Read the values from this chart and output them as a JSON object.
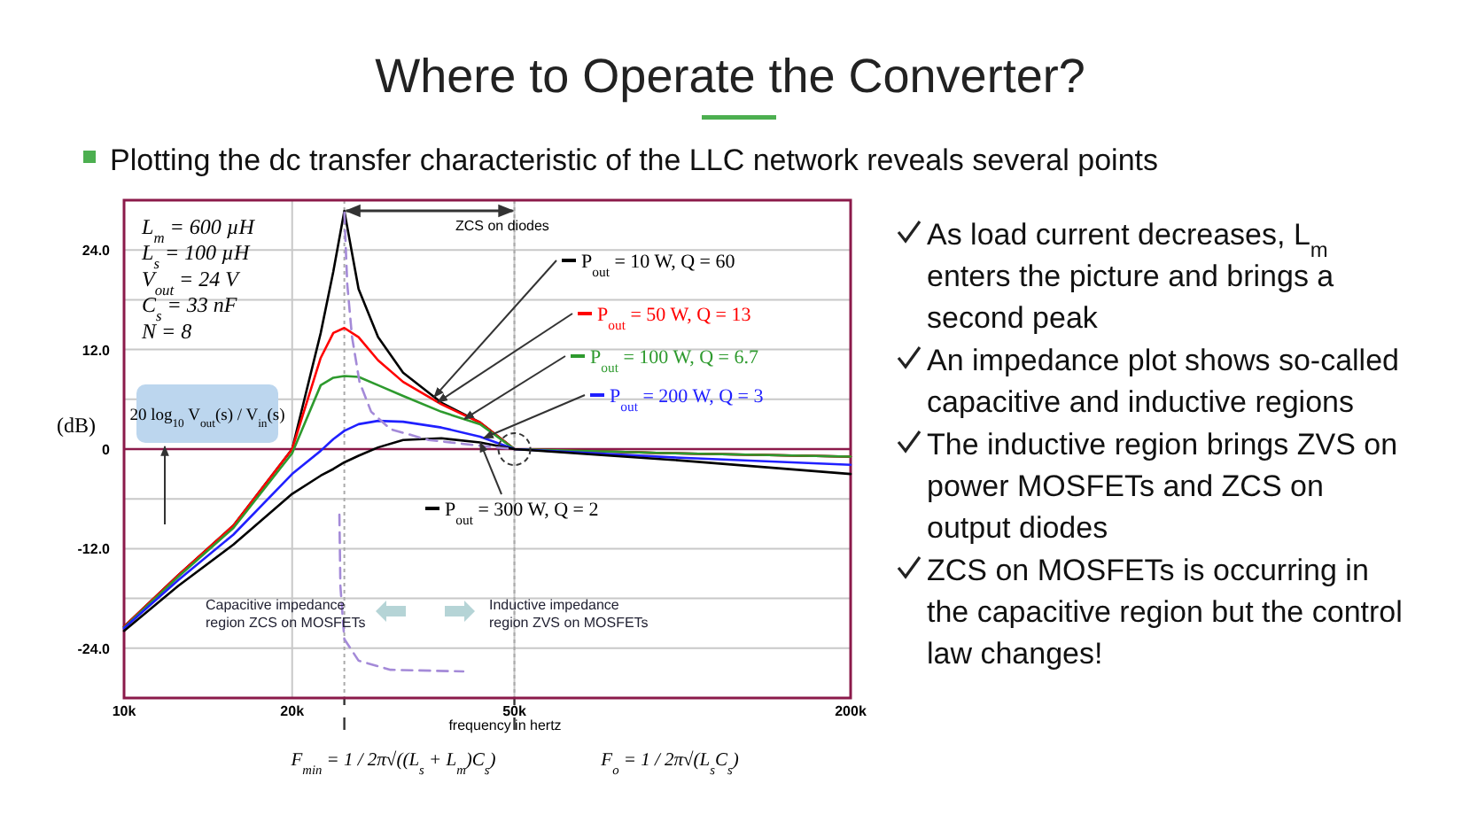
{
  "chart_data": {
    "type": "line",
    "title": "Where to Operate the Converter?",
    "subtitle": "Plotting the dc transfer characteristic of the LLC network reveals several points",
    "xlabel": "frequency in hertz",
    "ylabel": "(dB)",
    "log": "x",
    "xlim": [
      10000,
      200000
    ],
    "xticks": [
      {
        "value": 10000,
        "label": "10k"
      },
      {
        "value": 20000,
        "label": "20k"
      },
      {
        "value": 50000,
        "label": "50k"
      },
      {
        "value": 200000,
        "label": "200k"
      }
    ],
    "ylim": [
      -30,
      30
    ],
    "yticks": [
      {
        "value": -24,
        "label": "-24.0"
      },
      {
        "value": -18,
        "label": null
      },
      {
        "value": -12,
        "label": "-12.0"
      },
      {
        "value": -6,
        "label": null
      },
      0,
      {
        "value": 6,
        "label": null
      },
      {
        "value": 12,
        "label": "12.0"
      },
      {
        "value": 18,
        "label": null
      },
      {
        "value": 24,
        "label": "24.0"
      }
    ],
    "grid": true,
    "legend": "right",
    "x": [
      10000,
      12500,
      15700,
      20000,
      22500,
      23700,
      24800,
      26300,
      28500,
      31600,
      37000,
      43400,
      50000,
      96000,
      200000
    ],
    "series": [
      {
        "name": "P$_{out}$ = 10 W, Q = 60",
        "color": "#000000",
        "values": [
          -21.4,
          -15.2,
          -9.2,
          0,
          14,
          21.4,
          28.7,
          19.3,
          13.5,
          9.2,
          5.6,
          3.2,
          0,
          -0.5,
          -0.9
        ]
      },
      {
        "name": "P$_{out}$ = 50 W, Q = 13",
        "color": "#ff0000",
        "values": [
          -21.4,
          -15.2,
          -9.2,
          0,
          11,
          14,
          14.6,
          13.5,
          10.7,
          8.1,
          5.4,
          3.2,
          0,
          -0.5,
          -0.9
        ]
      },
      {
        "name": "P$_{out}$ = 100 W, Q = 6.7",
        "color": "#2e9a2e",
        "values": [
          -21.5,
          -15.4,
          -9.5,
          -0.5,
          7.7,
          8.6,
          8.8,
          8.7,
          7.7,
          6.4,
          4.5,
          3,
          0,
          -0.5,
          -0.9
        ]
      },
      {
        "name": "P$_{out}$ = 200 W, Q = 3",
        "color": "#2020ff",
        "values": [
          -21.6,
          -15.8,
          -10.3,
          -3,
          -0.2,
          1.2,
          2.2,
          3,
          3.4,
          3.3,
          2.6,
          1.5,
          0,
          -1,
          -1.9
        ]
      },
      {
        "name": "P$_{out}$ = 300 W, Q = 2",
        "color": "#000000",
        "values": [
          -21.9,
          -16.5,
          -11.5,
          -5.4,
          -3.2,
          -2.4,
          -1.6,
          -0.8,
          0.2,
          1.1,
          1.3,
          0.8,
          0,
          -1.3,
          -3
        ]
      },
      {
        "color": "#a48ad8",
        "line_style": "dashed",
        "x": [
          24800,
          25100,
          25600,
          26400,
          27700,
          30000,
          35100,
          43400,
          50000
        ],
        "values": [
          28.5,
          19.9,
          13.5,
          8.1,
          4.5,
          2.4,
          1.1,
          0.4,
          0
        ]
      },
      {
        "color": "#a48ad8",
        "line_style": "dashed",
        "x": [
          24300,
          24400,
          24800,
          26300,
          30000,
          40500
        ],
        "values": [
          -7.9,
          -16.5,
          -22.9,
          -25.5,
          -26.6,
          -26.8
        ]
      }
    ],
    "ref_lines": [
      {
        "axis": "x",
        "value": 24800,
        "color": "#aaaaaa",
        "line_style": "dotted"
      },
      {
        "axis": "x",
        "value": 50000,
        "color": "#aaaaaa",
        "line_style": "dotted"
      },
      {
        "axis": "y",
        "value": 0,
        "color": "#8b1a4a",
        "line_style": "solid"
      }
    ],
    "annotations": [
      "L$_{m}$ = 600 µH",
      "L$_{s}$ = 100 µH",
      "V$_{out}$ = 24 V",
      "C$_{s}$ = 33 nF",
      "N = 8",
      "20 log$_{10}$ V$_{out}$(s) / V$_{in}$(s)",
      "ZCS on diodes",
      "Capacitive impedance region ZCS on MOSFETs",
      "Inductive impedance region ZVS on MOSFETs",
      "As load current decreases, L$_{m}$ enters the picture and brings a second peak",
      "An impedance plot shows so-called capacitive and inductive regions",
      "The inductive region brings ZVS on power MOSFETs and ZCS on output diodes",
      "ZCS on MOSFETs is occurring in the capacitive region but the control law changes!",
      "F$_{min}$ = 1 / 2π√((L$_{s}$ + L$_{m}$)C$_{s}$)",
      "F$_{o}$ = 1 / 2π√(L$_{s}$C$_{s}$)"
    ]
  }
}
